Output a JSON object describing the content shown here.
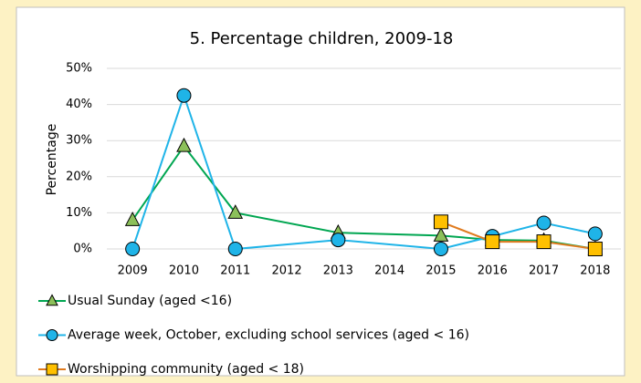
{
  "chart_data": {
    "type": "line",
    "title": "5. Percentage children, 2009-18",
    "y_label": "Percentage",
    "xlim": [
      2008.5,
      2018.5
    ],
    "xticks": [
      2009,
      2010,
      2011,
      2012,
      2013,
      2014,
      2015,
      2016,
      2017,
      2018
    ],
    "ylim": [
      0,
      50
    ],
    "yticks": [
      {
        "value": 0,
        "label": "0%"
      },
      {
        "value": 10,
        "label": "10%"
      },
      {
        "value": 20,
        "label": "20%"
      },
      {
        "value": 30,
        "label": "30%"
      },
      {
        "value": 40,
        "label": "40%"
      },
      {
        "value": 50,
        "label": "50%"
      }
    ],
    "grid": true,
    "legend": "bottom",
    "series": [
      {
        "name": "Usual Sunday (aged <16)",
        "color": "#00a651",
        "marker": "triangle",
        "marker_color": "#8cc05a",
        "x": [
          2009,
          2010,
          2011,
          2013,
          2015,
          2016,
          2017,
          2018
        ],
        "values": [
          8,
          28.5,
          10,
          4.5,
          3.7,
          2.5,
          2.3,
          0
        ]
      },
      {
        "name": "Average week, October, excluding school services (aged < 16)",
        "color": "#1fb4e8",
        "marker": "circle",
        "marker_color": "#1fb4e8",
        "x": [
          2009,
          2010,
          2011,
          2013,
          2015,
          2016,
          2017,
          2018
        ],
        "values": [
          0,
          42.5,
          0,
          2.5,
          0,
          3.5,
          7.2,
          4.2
        ]
      },
      {
        "name": "Worshipping community (aged < 18)",
        "color": "#e07b1f",
        "marker": "square",
        "marker_color": "#ffc000",
        "x": [
          2015,
          2016,
          2017,
          2018
        ],
        "values": [
          7.5,
          2,
          2,
          0
        ]
      }
    ]
  }
}
